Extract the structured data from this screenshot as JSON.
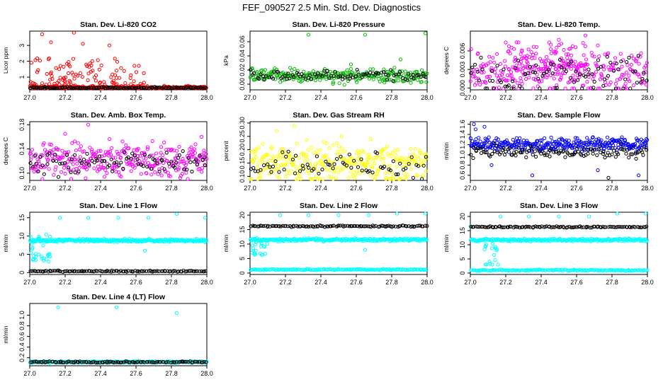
{
  "title": "FEF_090527  2.5 Min. Std. Dev. Diagnostics",
  "chart_data": [
    {
      "type": "scatter",
      "title": "Stan. Dev. Li-820 CO2",
      "ylabel": "Licor ppm",
      "xlim": [
        27.0,
        28.0
      ],
      "ylim": [
        0.2,
        3.9
      ],
      "xticks": [
        "27.0",
        "27.2",
        "27.4",
        "27.6",
        "27.8",
        "28.0"
      ],
      "yticks": [
        {
          "v": 1,
          "label": "1"
        },
        {
          "v": 2,
          "label": "2"
        },
        {
          "v": 3,
          "label": "3"
        }
      ],
      "series": [
        {
          "name": "black",
          "color": "#000000",
          "base": 0.33,
          "spread": 0.03,
          "n": 130,
          "outliers": []
        },
        {
          "name": "main",
          "color": "#ff0000",
          "base": 0.35,
          "spread": 0.06,
          "n": 220,
          "cluster": {
            "x0": 27.0,
            "x1": 27.65,
            "ylo": 0.4,
            "yhi": 2.2,
            "n": 120
          },
          "outliers": [
            [
              27.07,
              3.7
            ],
            [
              27.25,
              3.8
            ],
            [
              27.12,
              3.2
            ],
            [
              27.3,
              3.1
            ],
            [
              27.45,
              3.0
            ]
          ]
        }
      ]
    },
    {
      "type": "scatter",
      "title": "Stan. Dev. Li-820 Pressure",
      "ylabel": "kPa",
      "xlim": [
        27.0,
        28.0
      ],
      "ylim": [
        -0.008,
        0.075
      ],
      "xticks": [
        "27.0",
        "27.2",
        "27.4",
        "27.6",
        "27.8",
        "28.0"
      ],
      "yticks": [
        {
          "v": 0.0,
          "label": "0.00"
        },
        {
          "v": 0.02,
          "label": "0.02"
        },
        {
          "v": 0.04,
          "label": "0.04"
        },
        {
          "v": 0.06,
          "label": "0.06"
        }
      ],
      "series": [
        {
          "name": "black",
          "color": "#000000",
          "base": 0.012,
          "spread": 0.004,
          "n": 90,
          "outliers": []
        },
        {
          "name": "main",
          "color": "#00bb00",
          "base": 0.012,
          "spread": 0.006,
          "n": 260,
          "outliers": [
            [
              27.33,
              0.07
            ],
            [
              27.65,
              0.07
            ],
            [
              27.99,
              0.072
            ],
            [
              27.85,
              0.035
            ],
            [
              27.57,
              0.028
            ]
          ]
        }
      ]
    },
    {
      "type": "scatter",
      "title": "Stan. Dev. Li-820 Temp.",
      "ylabel": "degrees C",
      "xlim": [
        27.0,
        28.0
      ],
      "ylim": [
        -0.0003,
        0.0092
      ],
      "xticks": [
        "27.0",
        "27.2",
        "27.4",
        "27.6",
        "27.8",
        "28.0"
      ],
      "yticks": [
        {
          "v": 0.0,
          "label": "0.000"
        },
        {
          "v": 0.003,
          "label": "0.003"
        },
        {
          "v": 0.006,
          "label": "0.006"
        }
      ],
      "series": [
        {
          "name": "black",
          "color": "#000000",
          "base": 0.002,
          "spread": 0.002,
          "n": 90,
          "outliers": []
        },
        {
          "name": "main",
          "color": "#ff00ff",
          "base": 0.0025,
          "spread": 0.002,
          "n": 280,
          "cluster": {
            "x0": 27.2,
            "x1": 27.65,
            "ylo": 0.003,
            "yhi": 0.0075,
            "n": 90
          },
          "outliers": [
            [
              27.65,
              0.0085
            ],
            [
              27.5,
              0.0078
            ]
          ]
        }
      ]
    },
    {
      "type": "scatter",
      "title": "Stan. Dev. Amb. Box Temp.",
      "ylabel": "degrees C",
      "xlim": [
        27.0,
        28.0
      ],
      "ylim": [
        0.088,
        0.185
      ],
      "xticks": [
        "27.0",
        "27.2",
        "27.4",
        "27.6",
        "27.8",
        "28.0"
      ],
      "yticks": [
        {
          "v": 0.1,
          "label": "0.10"
        },
        {
          "v": 0.14,
          "label": "0.14"
        },
        {
          "v": 0.18,
          "label": "0.18"
        }
      ],
      "series": [
        {
          "name": "black",
          "color": "#000000",
          "base": 0.118,
          "spread": 0.012,
          "n": 90,
          "outliers": []
        },
        {
          "name": "main",
          "color": "#ff00ff",
          "base": 0.122,
          "spread": 0.017,
          "n": 320,
          "outliers": [
            [
              27.33,
              0.18
            ],
            [
              27.97,
              0.16
            ],
            [
              27.2,
              0.165
            ]
          ]
        }
      ]
    },
    {
      "type": "scatter",
      "title": "Stan. Dev. Gas Stream RH",
      "ylabel": "percent",
      "xlim": [
        27.0,
        28.0
      ],
      "ylim": [
        0.085,
        0.305
      ],
      "xticks": [
        "27.0",
        "27.2",
        "27.4",
        "27.6",
        "27.8",
        "28.0"
      ],
      "yticks": [
        {
          "v": 0.1,
          "label": "0.10"
        },
        {
          "v": 0.15,
          "label": "0.15"
        },
        {
          "v": 0.2,
          "label": "0.20"
        },
        {
          "v": 0.25,
          "label": "0.25"
        },
        {
          "v": 0.3,
          "label": "0.30"
        }
      ],
      "series": [
        {
          "name": "black",
          "color": "#000000",
          "base": 0.14,
          "spread": 0.03,
          "n": 70,
          "outliers": []
        },
        {
          "name": "main",
          "color": "#ffff00",
          "base": 0.15,
          "spread": 0.045,
          "n": 320,
          "outliers": [
            [
              27.25,
              0.29
            ],
            [
              27.15,
              0.27
            ]
          ]
        }
      ]
    },
    {
      "type": "scatter",
      "title": "Stan. Dev. Sample Flow",
      "ylabel": "ml/min",
      "xlim": [
        27.0,
        28.0
      ],
      "ylim": [
        0.5,
        1.65
      ],
      "xticks": [
        "27.0",
        "27.2",
        "27.4",
        "27.6",
        "27.8",
        "28.0"
      ],
      "yticks": [
        {
          "v": 0.6,
          "label": "0.6"
        },
        {
          "v": 0.8,
          "label": "0.8"
        },
        {
          "v": 1.0,
          "label": "1.0"
        },
        {
          "v": 1.2,
          "label": "1.2"
        },
        {
          "v": 1.4,
          "label": "1.4"
        },
        {
          "v": 1.6,
          "label": "1.6"
        }
      ],
      "series": [
        {
          "name": "black",
          "color": "#000000",
          "base": 1.06,
          "spread": 0.08,
          "n": 120,
          "outliers": [
            [
              27.78,
              0.55
            ]
          ]
        },
        {
          "name": "main",
          "color": "#0000ff",
          "base": 1.2,
          "spread": 0.08,
          "n": 330,
          "outliers": [
            [
              27.02,
              1.6
            ],
            [
              27.08,
              1.55
            ],
            [
              27.03,
              1.5
            ],
            [
              27.35,
              0.6
            ],
            [
              27.95,
              0.6
            ],
            [
              27.72,
              0.7
            ],
            [
              27.12,
              0.8
            ]
          ]
        }
      ]
    },
    {
      "type": "scatter",
      "title": "Stan. Dev. Line 1 Flow",
      "ylabel": "ml/min",
      "xlim": [
        27.0,
        28.0
      ],
      "ylim": [
        -0.5,
        16.5
      ],
      "xticks": [
        "27.0",
        "27.2",
        "27.4",
        "27.6",
        "27.8",
        "28.0"
      ],
      "yticks": [
        {
          "v": 0,
          "label": "0"
        },
        {
          "v": 5,
          "label": "5"
        },
        {
          "v": 10,
          "label": "10"
        },
        {
          "v": 15,
          "label": "15"
        }
      ],
      "series": [
        {
          "name": "black",
          "color": "#000000",
          "base": 0.4,
          "spread": 0.1,
          "n": 110,
          "outliers": []
        },
        {
          "name": "main",
          "color": "#00ffff",
          "base": 8.8,
          "spread": 0.25,
          "n": 300,
          "cluster": {
            "x0": 27.0,
            "x1": 27.12,
            "ylo": 3.0,
            "yhi": 11.0,
            "n": 30
          },
          "outliers": [
            [
              27.17,
              15
            ],
            [
              27.33,
              15
            ],
            [
              27.5,
              15
            ],
            [
              27.67,
              15
            ],
            [
              27.83,
              16
            ],
            [
              27.99,
              15
            ],
            [
              27.65,
              6
            ]
          ]
        }
      ]
    },
    {
      "type": "scatter",
      "title": "Stan. Dev. Line 2 Flow",
      "ylabel": "ml/min",
      "xlim": [
        27.0,
        28.0
      ],
      "ylim": [
        -0.5,
        21
      ],
      "xticks": [
        "27.0",
        "27.2",
        "27.4",
        "27.6",
        "27.8",
        "28.0"
      ],
      "yticks": [
        {
          "v": 0,
          "label": "0"
        },
        {
          "v": 5,
          "label": "5"
        },
        {
          "v": 10,
          "label": "10"
        },
        {
          "v": 15,
          "label": "15"
        },
        {
          "v": 20,
          "label": "20"
        }
      ],
      "series": [
        {
          "name": "cyan-low",
          "color": "#00ffff",
          "base": 1.2,
          "spread": 0.15,
          "n": 160,
          "outliers": []
        },
        {
          "name": "black",
          "color": "#000000",
          "base": 16.2,
          "spread": 0.15,
          "n": 110,
          "outliers": []
        },
        {
          "name": "main",
          "color": "#00ffff",
          "base": 11.5,
          "spread": 0.3,
          "n": 250,
          "cluster": {
            "x0": 27.0,
            "x1": 27.1,
            "ylo": 6.0,
            "yhi": 11.0,
            "n": 20
          },
          "outliers": [
            [
              27.17,
              20
            ],
            [
              27.33,
              20
            ],
            [
              27.5,
              20
            ],
            [
              27.67,
              20
            ],
            [
              27.83,
              20.5
            ],
            [
              27.99,
              20.5
            ],
            [
              27.65,
              8
            ]
          ]
        }
      ]
    },
    {
      "type": "scatter",
      "title": "Stan. Dev. Line 3 Flow",
      "ylabel": "ml/min",
      "xlim": [
        27.0,
        28.0
      ],
      "ylim": [
        -0.5,
        21.5
      ],
      "xticks": [
        "27.0",
        "27.2",
        "27.4",
        "27.6",
        "27.8",
        "28.0"
      ],
      "yticks": [
        {
          "v": 0,
          "label": "0"
        },
        {
          "v": 5,
          "label": "5"
        },
        {
          "v": 10,
          "label": "10"
        },
        {
          "v": 15,
          "label": "15"
        },
        {
          "v": 20,
          "label": "20"
        }
      ],
      "series": [
        {
          "name": "cyan-low",
          "color": "#00ffff",
          "base": 1.0,
          "spread": 0.15,
          "n": 160,
          "outliers": []
        },
        {
          "name": "black",
          "color": "#000000",
          "base": 16.3,
          "spread": 0.15,
          "n": 110,
          "outliers": []
        },
        {
          "name": "main",
          "color": "#00ffff",
          "base": 11.7,
          "spread": 0.3,
          "n": 250,
          "cluster": {
            "x0": 27.08,
            "x1": 27.16,
            "ylo": 3.0,
            "yhi": 11.0,
            "n": 18
          },
          "outliers": [
            [
              27.17,
              20
            ],
            [
              27.33,
              20
            ],
            [
              27.5,
              20
            ],
            [
              27.67,
              20
            ],
            [
              27.83,
              21
            ],
            [
              27.99,
              21
            ],
            [
              27.0,
              16.5
            ]
          ]
        }
      ]
    },
    {
      "type": "scatter",
      "title": "Stan. Dev. Line 4 (LT) Flow",
      "ylabel": "ml/min",
      "xlim": [
        27.0,
        28.0
      ],
      "ylim": [
        0.05,
        1.22
      ],
      "xticks": [
        "27.0",
        "27.2",
        "27.4",
        "27.6",
        "27.8",
        "28.0"
      ],
      "yticks": [
        {
          "v": 0.2,
          "label": "0.2"
        },
        {
          "v": 0.4,
          "label": "0.4"
        },
        {
          "v": 0.6,
          "label": "0.6"
        },
        {
          "v": 0.8,
          "label": "0.8"
        },
        {
          "v": 1.0,
          "label": "1.0"
        }
      ],
      "series": [
        {
          "name": "black",
          "color": "#000000",
          "base": 0.12,
          "spread": 0.008,
          "n": 110,
          "outliers": []
        },
        {
          "name": "main",
          "color": "#00ffff",
          "base": 0.12,
          "spread": 0.01,
          "n": 260,
          "outliers": [
            [
              27.16,
              1.15
            ],
            [
              27.49,
              1.15
            ],
            [
              27.83,
              1.04
            ]
          ]
        }
      ]
    }
  ]
}
